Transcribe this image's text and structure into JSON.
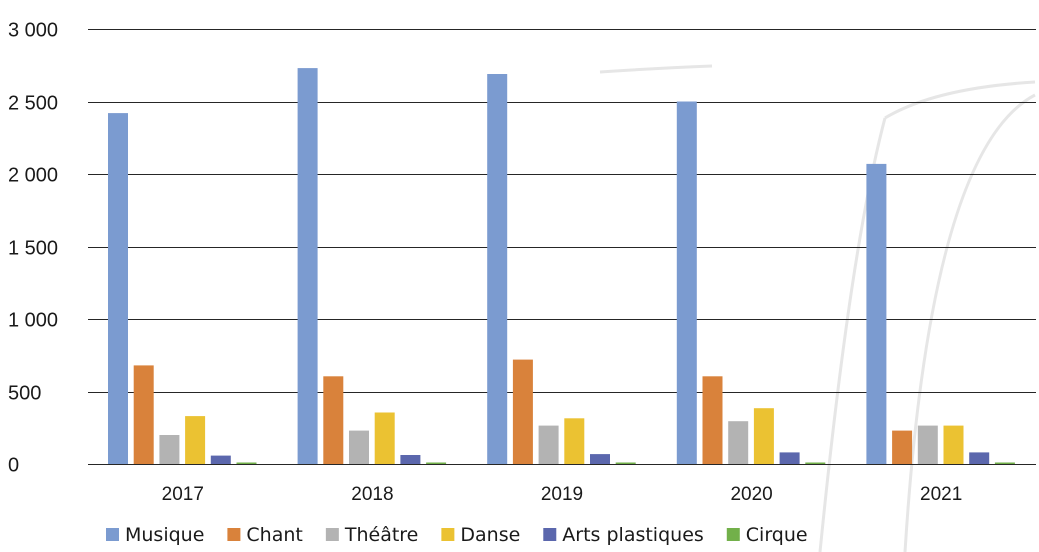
{
  "chart_data": {
    "type": "bar",
    "title": "",
    "xlabel": "",
    "ylabel": "",
    "categories": [
      "2017",
      "2018",
      "2019",
      "2020",
      "2021"
    ],
    "ylim": [
      0,
      3000
    ],
    "yticks": [
      0,
      500,
      1000,
      1500,
      2000,
      2500,
      3000
    ],
    "ytick_labels": [
      "0",
      "500",
      "1 000",
      "1 500",
      "2 000",
      "2 500",
      "3 000"
    ],
    "grid": true,
    "legend_position": "bottom",
    "series": [
      {
        "name": "Musique",
        "color": "#7b9bd0",
        "values": [
          2420,
          2730,
          2690,
          2500,
          2070
        ]
      },
      {
        "name": "Chant",
        "color": "#d9823b",
        "values": [
          680,
          605,
          720,
          605,
          230
        ]
      },
      {
        "name": "Théâtre",
        "color": "#b3b3b3",
        "values": [
          200,
          230,
          265,
          295,
          265
        ]
      },
      {
        "name": "Danse",
        "color": "#ebc232",
        "values": [
          330,
          355,
          315,
          385,
          265
        ]
      },
      {
        "name": "Arts plastiques",
        "color": "#5b67ad",
        "values": [
          58,
          62,
          68,
          80,
          80
        ]
      },
      {
        "name": "Cirque",
        "color": "#72b04a",
        "values": [
          2,
          2,
          2,
          2,
          2
        ]
      }
    ]
  }
}
